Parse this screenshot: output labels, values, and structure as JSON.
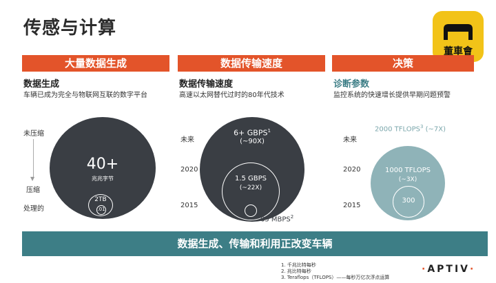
{
  "title": "传感与计算",
  "logo": {
    "text": "董車會"
  },
  "sections": [
    {
      "header": "大量数据生成",
      "subtitle": "数据生成",
      "description": "车辆已成为完全与物联网互联的数字平台",
      "axis": {
        "top": "未压缩",
        "bottom": "压缩",
        "extra": "处理的"
      },
      "big_value": "40+",
      "big_unit": "兆兆字节",
      "small_value": "2TB",
      "tiny_value": ".01"
    },
    {
      "header": "数据传输速度",
      "subtitle": "数据传输速度",
      "description": "高速以太网替代过时的80年代技术",
      "axis": {
        "top": "未来",
        "mid": "2020",
        "bottom": "2015"
      },
      "big_value": "6+ GBPS",
      "big_note": "1",
      "big_mult": "(~90X)",
      "mid_value": "1.5 GBPS",
      "mid_mult": "(~22X)",
      "small_value": "65 MBPS",
      "small_note": "2"
    },
    {
      "header": "决策",
      "subtitle": "诊断参数",
      "description": "监控系统的快速增长提供早期问题预警",
      "axis": {
        "top": "未来",
        "mid": "2020",
        "bottom": "2015"
      },
      "big_value": "2000 TFLOPS",
      "big_note": "3",
      "big_mult": "(~7X)",
      "mid_value": "1000 TFLOPS",
      "mid_mult": "(~3X)",
      "small_value": "300"
    }
  ],
  "banner": "数据生成、传输和利用正改变车辆",
  "footnotes": [
    "1.    千兆比特每秒",
    "2.    兆比特每秒",
    "3.    Teraflops（TFLOPS）——每秒万亿次浮点运算"
  ],
  "brand": {
    "dot": "·",
    "name": "APTIV",
    "dot2": "·"
  },
  "colors": {
    "accent": "#e3542a",
    "dark_circle": "#3a3e44",
    "teal_light": "#8fb3b8",
    "teal_banner": "#3d7e86",
    "logo_yellow": "#f2c318"
  }
}
